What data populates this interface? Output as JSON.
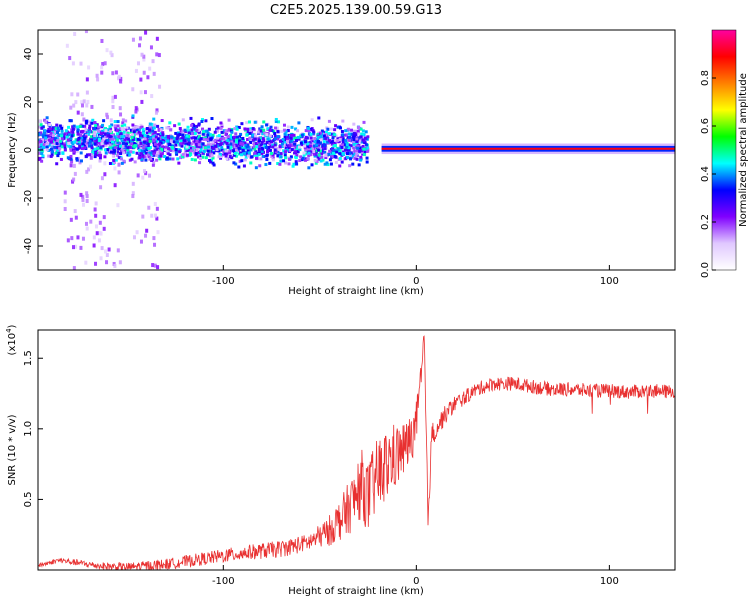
{
  "figure_title": "C2E5.2025.139.00.59.G13",
  "chart_data": [
    {
      "type": "heatmap",
      "title": "C2E5.2025.139.00.59.G13",
      "xlabel": "Height of straight line (km)",
      "ylabel": "Frequency (Hz)",
      "xlim": [
        -196,
        134
      ],
      "ylim": [
        -50,
        50
      ],
      "xticks": [
        -100,
        0,
        100
      ],
      "yticks": [
        -40,
        -20,
        0,
        20,
        40
      ],
      "colorbar": {
        "label": "Normalized spectral amplitude",
        "range": [
          0.0,
          1.0
        ],
        "ticks": [
          0.0,
          0.2,
          0.4,
          0.6,
          0.8
        ],
        "colormap": [
          "#ffffff",
          "#e0c8ff",
          "#8000ff",
          "#0000ff",
          "#00ffff",
          "#00ff00",
          "#ffff00",
          "#ff8000",
          "#ff0000",
          "#ff00a0"
        ]
      },
      "features": [
        {
          "name": "broadband_scatter",
          "x_range": [
            -196,
            -25
          ],
          "freq_center": 4,
          "spread_hz": 6,
          "amplitude": 0.35
        },
        {
          "name": "vertical_streaks",
          "x_centers": [
            -175,
            -160,
            -140
          ],
          "amplitude": 0.15
        },
        {
          "name": "narrow_tone",
          "x_range": [
            -18,
            134
          ],
          "freq": 0.5,
          "amplitude": 0.9
        }
      ]
    },
    {
      "type": "line",
      "xlabel": "Height of straight line (km)",
      "ylabel": "SNR (10 * v/v)",
      "y_scale_label_base": "(x10",
      "y_scale_label_exp": "4",
      "y_scale_label_end": ")",
      "xlim": [
        -196,
        134
      ],
      "ylim": [
        0,
        1.7
      ],
      "xticks": [
        -100,
        0,
        100
      ],
      "yticks": [
        0.5,
        1.0,
        1.5
      ],
      "yticklabels": [
        "0.5",
        "1.0",
        "1.5"
      ],
      "color": "#e83030",
      "envelope": {
        "x": [
          -196,
          -185,
          -175,
          -165,
          -150,
          -130,
          -110,
          -90,
          -70,
          -55,
          -45,
          -38,
          -32,
          -28,
          -25,
          -22,
          -18,
          -12,
          -8,
          -5,
          -2,
          0,
          3,
          4,
          6,
          8,
          10,
          15,
          20,
          25,
          30,
          35,
          40,
          50,
          60,
          70,
          80,
          90,
          100,
          110,
          120,
          134
        ],
        "y": [
          0.03,
          0.07,
          0.05,
          0.03,
          0.02,
          0.04,
          0.08,
          0.12,
          0.15,
          0.2,
          0.28,
          0.38,
          0.5,
          0.62,
          0.5,
          0.62,
          0.7,
          0.8,
          0.83,
          0.88,
          0.95,
          1.05,
          1.4,
          1.68,
          0.35,
          0.95,
          1.0,
          1.1,
          1.18,
          1.22,
          1.27,
          1.3,
          1.32,
          1.32,
          1.3,
          1.28,
          1.28,
          1.27,
          1.27,
          1.26,
          1.27,
          1.26
        ]
      }
    }
  ]
}
